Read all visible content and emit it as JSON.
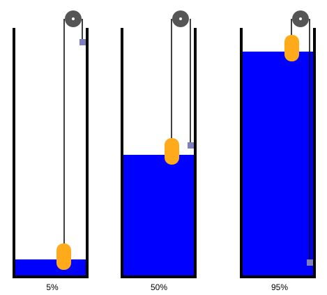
{
  "colors": {
    "water": "#0000ff",
    "float": "#ffaa1a",
    "counterweight": "#7f7fbf",
    "pulley": "#555555",
    "tank_wall": "#000000",
    "rope": "#000000"
  },
  "tanks": [
    {
      "label": "5%",
      "fill_level": 0.05
    },
    {
      "label": "50%",
      "fill_level": 0.5
    },
    {
      "label": "95%",
      "fill_level": 0.95
    }
  ]
}
